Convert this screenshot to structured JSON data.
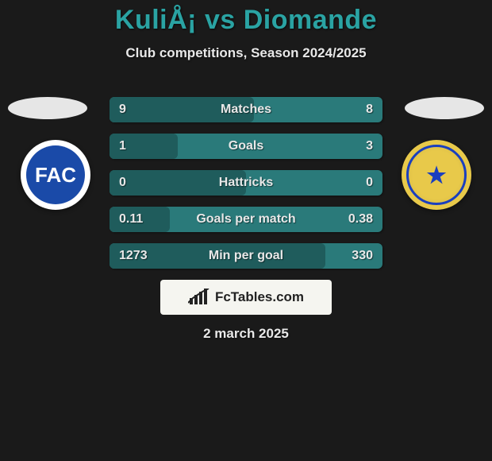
{
  "colors": {
    "bg": "#1a1a1a",
    "title": "#2aa3a3",
    "text": "#e8e8e8",
    "bar_base": "#2a7a7a",
    "bar_left_fill": "#1f5c5c",
    "player_badge": "#e6e6e6",
    "badge_left_outer": "#ffffff",
    "badge_left_inner": "#1a4aa8",
    "badge_left_text": "#ffffff",
    "badge_right_bg": "#e8c94a",
    "badge_right_ring": "#1a3fbf",
    "badge_right_text": "#1a3fbf",
    "brand_bg": "#f5f5f0",
    "brand_text": "#222222"
  },
  "title": "KuliÅ¡ vs Diomande",
  "subtitle": "Club competitions, Season 2024/2025",
  "player_left_short": "FAC",
  "player_right_short": "★",
  "bars": [
    {
      "label": "Matches",
      "left": "9",
      "right": "8",
      "fill_pct": 53
    },
    {
      "label": "Goals",
      "left": "1",
      "right": "3",
      "fill_pct": 25
    },
    {
      "label": "Hattricks",
      "left": "0",
      "right": "0",
      "fill_pct": 50
    },
    {
      "label": "Goals per match",
      "left": "0.11",
      "right": "0.38",
      "fill_pct": 22
    },
    {
      "label": "Min per goal",
      "left": "1273",
      "right": "330",
      "fill_pct": 79
    }
  ],
  "brand": "FcTables.com",
  "date": "2 march 2025"
}
